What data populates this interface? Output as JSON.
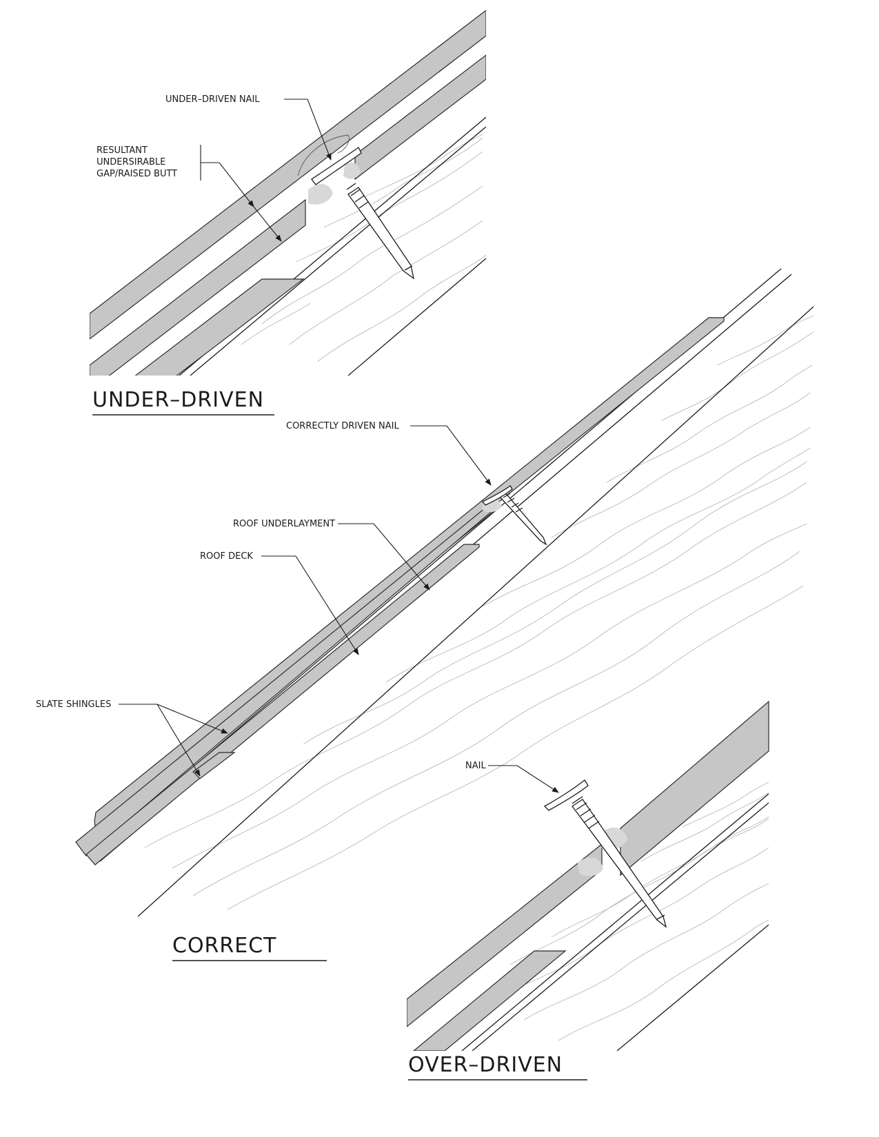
{
  "colors": {
    "slate_fill": "#c6c6c6",
    "line": "#1a1a1a",
    "wood_grain": "#b8b8b8",
    "sealant": "#d8d8d8"
  },
  "panels": {
    "under_driven": {
      "title": "UNDER–DRIVEN",
      "labels": {
        "nail": "UNDER–DRIVEN NAIL",
        "gap_line1": "RESULTANT",
        "gap_line2": "UNDERSIRABLE",
        "gap_line3": "GAP/RAISED BUTT"
      }
    },
    "correct": {
      "title": "CORRECT",
      "labels": {
        "nail": "CORRECTLY DRIVEN NAIL",
        "underlayment": "ROOF UNDERLAYMENT",
        "deck": "ROOF DECK",
        "shingles": "SLATE SHINGLES"
      }
    },
    "over_driven": {
      "title": "OVER–DRIVEN",
      "labels": {
        "nail": "NAIL"
      }
    }
  }
}
